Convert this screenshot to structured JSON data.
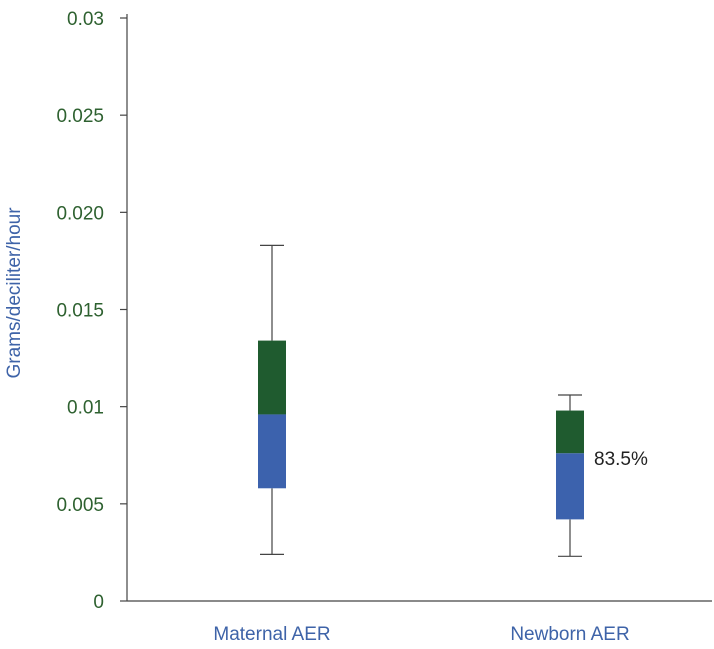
{
  "chart_data": {
    "type": "box",
    "title": "",
    "xlabel": "",
    "ylabel": "Grams/deciliter/hour",
    "ylim": [
      0,
      0.03
    ],
    "ytick_labels": [
      "0",
      "0.005",
      "0.01",
      "0.015",
      "0.020",
      "0.025",
      "0.03"
    ],
    "ytick_values": [
      0,
      0.005,
      0.01,
      0.015,
      0.02,
      0.025,
      0.03
    ],
    "grid": false,
    "categories": [
      "Maternal AER",
      "Newborn AER"
    ],
    "boxes": [
      {
        "category": "Maternal AER",
        "min": 0.0024,
        "q1": 0.0058,
        "median": 0.0096,
        "q3": 0.0134,
        "max": 0.0183
      },
      {
        "category": "Newborn AER",
        "min": 0.0023,
        "q1": 0.0042,
        "median": 0.0076,
        "q3": 0.0098,
        "max": 0.0106
      }
    ],
    "annotations": [
      {
        "text": "83.5%",
        "category": "Newborn AER",
        "y": 0.007
      }
    ],
    "colors": {
      "lower_box": "#3c62ad",
      "upper_box": "#1f5b2f",
      "whisker": "#444444",
      "axis": "#444444",
      "ytick_text": "#2e6130",
      "xtick_text": "#3e63a8",
      "ylabel_text": "#3e63a8"
    }
  }
}
